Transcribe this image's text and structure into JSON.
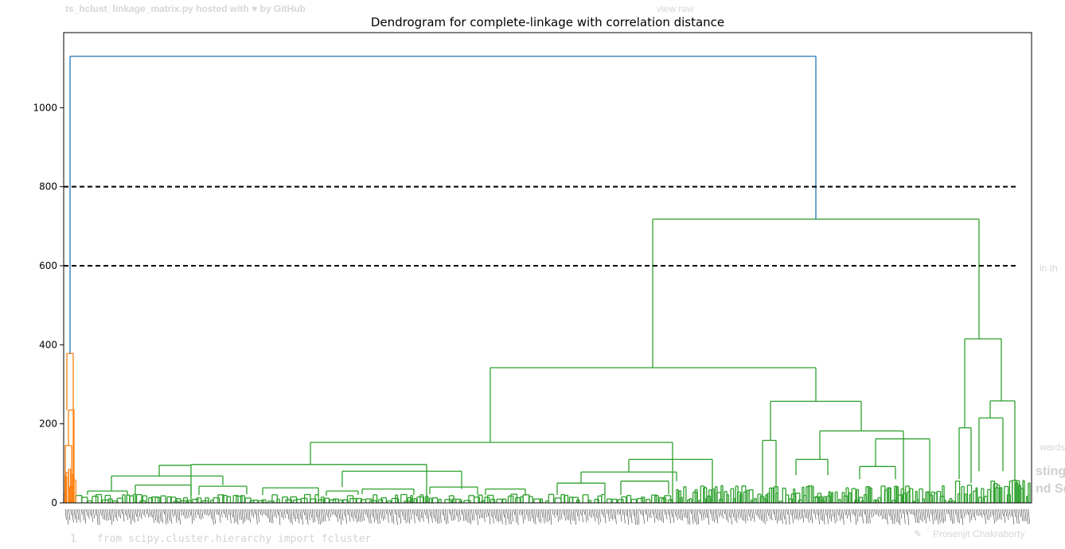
{
  "background": {
    "gist_caption": "ts_hclust_linkage_matrix.py hosted with ♥ by GitHub",
    "view_raw": "view raw",
    "code_line_no": "1",
    "code_line": "from scipy.cluster.hierarchy import fcluster",
    "side_text_1": "in th",
    "side_text_2": "wards",
    "side_heading_1": "sting",
    "side_heading_2": "nd Se",
    "author": "Prosenjit Chakraborty"
  },
  "chart_data": {
    "type": "dendrogram",
    "title": "Dendrogram for complete-linkage with correlation distance",
    "xlabel": "",
    "ylabel": "",
    "ylim": [
      0,
      1150
    ],
    "yticks": [
      0,
      200,
      400,
      600,
      800,
      1000
    ],
    "ytick_labels": [
      "0",
      "200",
      "400",
      "600",
      "800",
      "1000"
    ],
    "threshold_lines": [
      800,
      600
    ],
    "threshold_style": "dashed",
    "colors": {
      "cluster_1": "#ff7f0e",
      "cluster_2": "#2ca02c",
      "above_threshold": "#1f77b4",
      "threshold": "#000000"
    },
    "major_merges": [
      {
        "name": "root",
        "height": 1130,
        "color": "#1f77b4"
      },
      {
        "name": "green-top",
        "height": 718,
        "color": "#2ca02c"
      },
      {
        "name": "green-left",
        "height": 342,
        "color": "#2ca02c"
      },
      {
        "name": "green-right",
        "height": 415,
        "color": "#2ca02c"
      },
      {
        "name": "green-mid-right",
        "height": 257,
        "color": "#2ca02c"
      },
      {
        "name": "green-left-sub",
        "height": 153,
        "color": "#2ca02c"
      },
      {
        "name": "orange-top",
        "height": 378,
        "color": "#ff7f0e"
      }
    ]
  }
}
